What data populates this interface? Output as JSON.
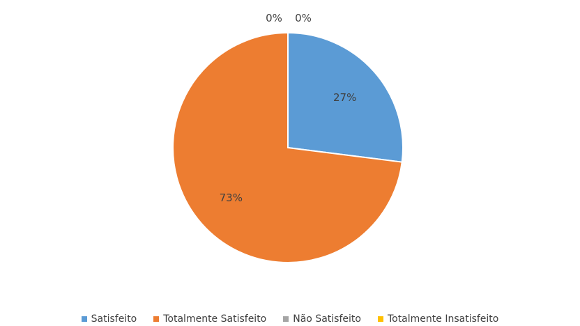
{
  "chart_data": {
    "type": "pie",
    "title": "",
    "categories": [
      "Satisfeito",
      "Totalmente Satisfeito",
      "Não Satisfeito",
      "Totalmente Insatisfeito"
    ],
    "values": [
      27,
      73,
      0,
      0
    ],
    "data_labels": [
      "27%",
      "73%",
      "0%",
      "0%"
    ],
    "colors": [
      "#5b9bd5",
      "#ed7d31",
      "#a5a5a5",
      "#ffc000"
    ],
    "legend_position": "bottom"
  }
}
